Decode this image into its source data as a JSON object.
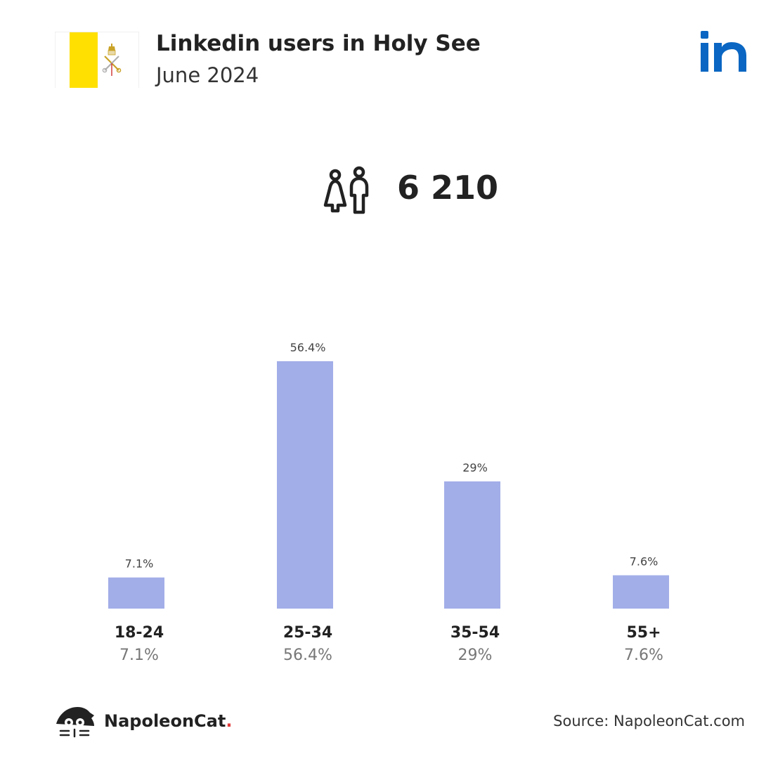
{
  "header": {
    "title": "Linkedin users in Holy See",
    "subtitle": "June 2024"
  },
  "flag": {
    "icon": "holy-see-flag-icon",
    "colors": {
      "yellow": "#FFE000",
      "white": "#FFFFFF"
    }
  },
  "platform": {
    "icon": "linkedin-logo-icon",
    "color": "#0A66C2"
  },
  "total": {
    "icon": "users-icon",
    "value": "6 210"
  },
  "chart_data": {
    "type": "bar",
    "categories": [
      "18-24",
      "25-34",
      "35-54",
      "55+"
    ],
    "values": [
      7.1,
      56.4,
      29,
      7.6
    ],
    "value_labels": [
      "7.1%",
      "56.4%",
      "29%",
      "7.6%"
    ],
    "ylim": [
      0,
      60
    ],
    "grid": false,
    "bar_color": "#A2AEE8"
  },
  "footer": {
    "brand_name": "NapoleonCat",
    "brand_dot": ".",
    "brand_icon": "napoleoncat-logo-icon",
    "source": "Source: NapoleonCat.com"
  }
}
